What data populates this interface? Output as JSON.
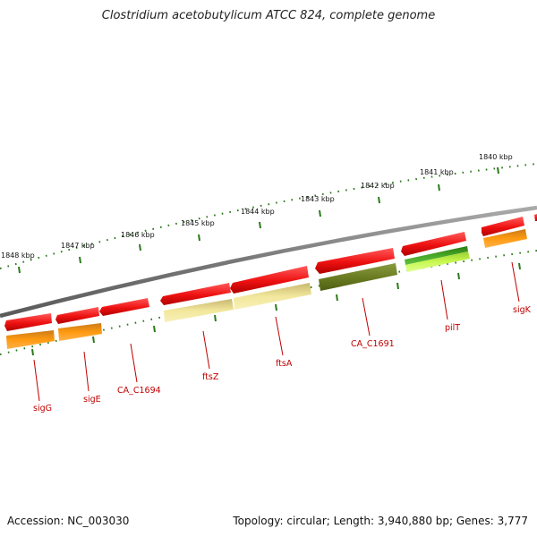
{
  "title": "Clostridium acetobutylicum ATCC 824, complete genome",
  "footer": {
    "accession": "Accession: NC_003030",
    "topology": "Topology: circular; Length: 3,940,880 bp; Genes: 3,777"
  },
  "scale": {
    "kbp_labels": [
      "1840 kbp",
      "1841 kbp",
      "1842 kbp",
      "1843 kbp",
      "1844 kbp",
      "1845 kbp",
      "1846 kbp",
      "1847 kbp",
      "1848 kbp"
    ]
  },
  "genes": [
    {
      "name": "sigG"
    },
    {
      "name": "sigE"
    },
    {
      "name": "CA_C1694"
    },
    {
      "name": "ftsZ"
    },
    {
      "name": "ftsA"
    },
    {
      "name": "CA_C1691"
    },
    {
      "name": "pilT"
    },
    {
      "name": "sigK"
    }
  ],
  "colors": {
    "cds_red": "#ee1111",
    "orange": "#ff8c00",
    "pale_yellow": "#efe08c",
    "olive": "#6b7d22",
    "green": "#3a9a1a",
    "lime": "#b8f040",
    "backbone": "#777777",
    "tick_green": "#2a7a1a",
    "label_red": "#c00000"
  }
}
